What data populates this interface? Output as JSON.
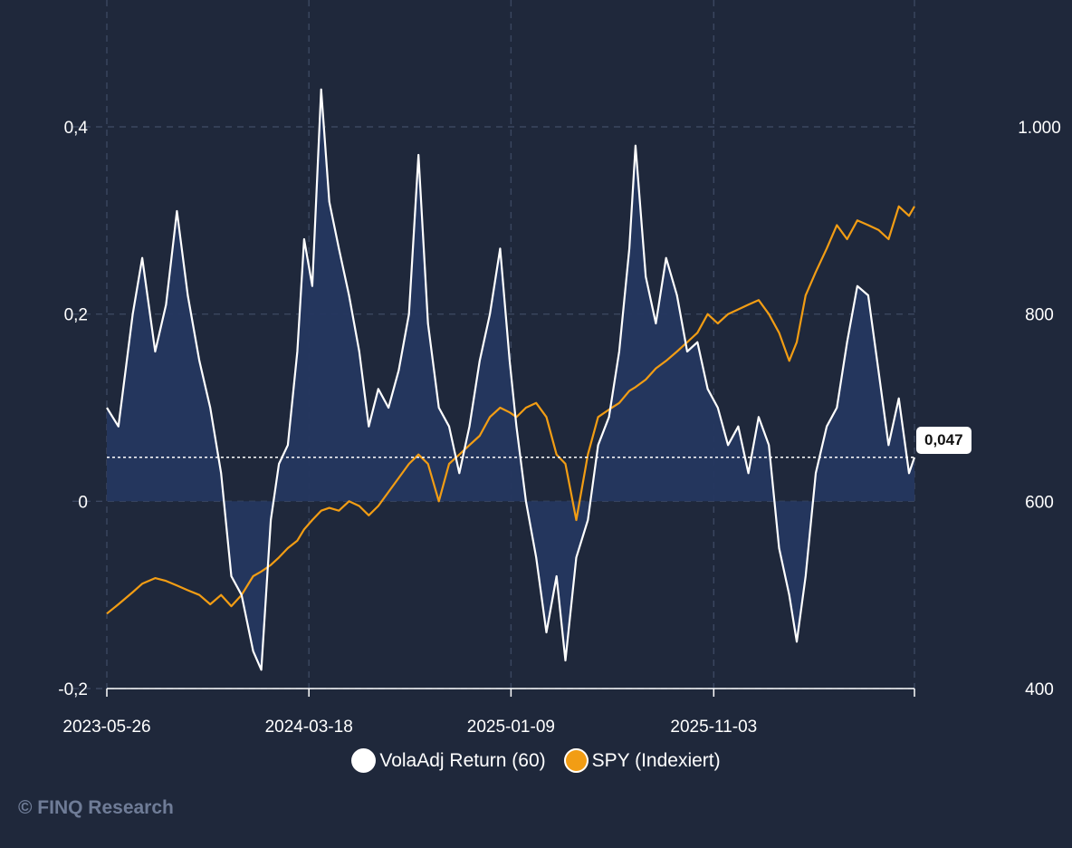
{
  "chart_data": {
    "type": "line",
    "title": "",
    "xlabel": "",
    "ylabel": "",
    "x_ticks": [
      "2023-05-26",
      "2024-03-18",
      "2025-01-09",
      "2025-11-03"
    ],
    "x_range": [
      "2023-05-26",
      "2026-08-25"
    ],
    "y_left_ticks": [
      "0,4",
      "0,2",
      "0",
      "-0,2"
    ],
    "y_left_range": [
      -0.2,
      0.4
    ],
    "y_right_ticks": [
      "1.000",
      "800",
      "600",
      "400"
    ],
    "y_right_range": [
      400,
      1000
    ],
    "grid": true,
    "legend_position": "bottom",
    "last_value_label": "0,047",
    "last_value_color": "#ffffff",
    "reference_line_value": 0.047,
    "series": [
      {
        "name": "VolaAdj Return (60)",
        "axis": "left",
        "color": "#ffffff",
        "area_fill": "#25375f",
        "points": [
          [
            "2023-05-26",
            0.1
          ],
          [
            "2023-06-12",
            0.08
          ],
          [
            "2023-07-03",
            0.2
          ],
          [
            "2023-07-17",
            0.26
          ],
          [
            "2023-08-05",
            0.16
          ],
          [
            "2023-08-21",
            0.21
          ],
          [
            "2023-09-06",
            0.31
          ],
          [
            "2023-09-22",
            0.22
          ],
          [
            "2023-10-09",
            0.15
          ],
          [
            "2023-10-25",
            0.1
          ],
          [
            "2023-11-10",
            0.03
          ],
          [
            "2023-11-25",
            -0.08
          ],
          [
            "2023-12-10",
            -0.1
          ],
          [
            "2023-12-27",
            -0.16
          ],
          [
            "2024-01-08",
            -0.18
          ],
          [
            "2024-01-22",
            -0.02
          ],
          [
            "2024-02-03",
            0.04
          ],
          [
            "2024-02-16",
            0.06
          ],
          [
            "2024-03-01",
            0.16
          ],
          [
            "2024-03-11",
            0.28
          ],
          [
            "2024-03-23",
            0.23
          ],
          [
            "2024-04-05",
            0.44
          ],
          [
            "2024-04-17",
            0.32
          ],
          [
            "2024-05-01",
            0.27
          ],
          [
            "2024-05-16",
            0.22
          ],
          [
            "2024-05-31",
            0.16
          ],
          [
            "2024-06-14",
            0.08
          ],
          [
            "2024-06-28",
            0.12
          ],
          [
            "2024-07-13",
            0.1
          ],
          [
            "2024-07-28",
            0.14
          ],
          [
            "2024-08-12",
            0.2
          ],
          [
            "2024-08-26",
            0.37
          ],
          [
            "2024-09-09",
            0.19
          ],
          [
            "2024-09-25",
            0.1
          ],
          [
            "2024-10-10",
            0.08
          ],
          [
            "2024-10-25",
            0.03
          ],
          [
            "2024-11-09",
            0.08
          ],
          [
            "2024-11-24",
            0.15
          ],
          [
            "2024-12-09",
            0.2
          ],
          [
            "2024-12-24",
            0.27
          ],
          [
            "2025-01-07",
            0.15
          ],
          [
            "2025-01-17",
            0.08
          ],
          [
            "2025-01-31",
            0.0
          ],
          [
            "2025-02-15",
            -0.06
          ],
          [
            "2025-03-02",
            -0.14
          ],
          [
            "2025-03-17",
            -0.08
          ],
          [
            "2025-03-30",
            -0.17
          ],
          [
            "2025-04-15",
            -0.06
          ],
          [
            "2025-05-02",
            -0.02
          ],
          [
            "2025-05-17",
            0.06
          ],
          [
            "2025-06-02",
            0.09
          ],
          [
            "2025-06-17",
            0.16
          ],
          [
            "2025-07-02",
            0.27
          ],
          [
            "2025-07-11",
            0.38
          ],
          [
            "2025-07-26",
            0.24
          ],
          [
            "2025-08-10",
            0.19
          ],
          [
            "2025-08-25",
            0.26
          ],
          [
            "2025-09-10",
            0.22
          ],
          [
            "2025-09-25",
            0.16
          ],
          [
            "2025-10-10",
            0.17
          ],
          [
            "2025-10-25",
            0.12
          ],
          [
            "2025-11-09",
            0.1
          ],
          [
            "2025-11-24",
            0.06
          ],
          [
            "2025-12-09",
            0.08
          ],
          [
            "2025-12-24",
            0.03
          ],
          [
            "2026-01-08",
            0.09
          ],
          [
            "2026-01-23",
            0.06
          ],
          [
            "2026-02-07",
            -0.05
          ],
          [
            "2026-02-22",
            -0.1
          ],
          [
            "2026-03-05",
            -0.15
          ],
          [
            "2026-03-18",
            -0.08
          ],
          [
            "2026-04-02",
            0.03
          ],
          [
            "2026-04-18",
            0.08
          ],
          [
            "2026-05-03",
            0.1
          ],
          [
            "2026-05-18",
            0.17
          ],
          [
            "2026-06-02",
            0.23
          ],
          [
            "2026-06-18",
            0.22
          ],
          [
            "2026-07-03",
            0.14
          ],
          [
            "2026-07-18",
            0.06
          ],
          [
            "2026-08-02",
            0.11
          ],
          [
            "2026-08-17",
            0.03
          ],
          [
            "2026-08-25",
            0.047
          ]
        ]
      },
      {
        "name": "SPY (Indexiert)",
        "axis": "right",
        "color": "#f29d14",
        "points": [
          [
            "2023-05-26",
            480
          ],
          [
            "2023-06-12",
            490
          ],
          [
            "2023-07-03",
            503
          ],
          [
            "2023-07-17",
            512
          ],
          [
            "2023-08-05",
            518
          ],
          [
            "2023-08-21",
            515
          ],
          [
            "2023-09-06",
            510
          ],
          [
            "2023-09-22",
            505
          ],
          [
            "2023-10-09",
            500
          ],
          [
            "2023-10-25",
            490
          ],
          [
            "2023-11-10",
            500
          ],
          [
            "2023-11-25",
            488
          ],
          [
            "2023-12-10",
            500
          ],
          [
            "2023-12-27",
            520
          ],
          [
            "2024-01-08",
            525
          ],
          [
            "2024-01-22",
            532
          ],
          [
            "2024-02-03",
            540
          ],
          [
            "2024-02-16",
            550
          ],
          [
            "2024-03-01",
            558
          ],
          [
            "2024-03-11",
            570
          ],
          [
            "2024-03-23",
            580
          ],
          [
            "2024-04-05",
            590
          ],
          [
            "2024-04-17",
            593
          ],
          [
            "2024-05-01",
            590
          ],
          [
            "2024-05-16",
            600
          ],
          [
            "2024-05-31",
            595
          ],
          [
            "2024-06-14",
            585
          ],
          [
            "2024-06-28",
            595
          ],
          [
            "2024-07-13",
            610
          ],
          [
            "2024-07-28",
            625
          ],
          [
            "2024-08-12",
            640
          ],
          [
            "2024-08-26",
            650
          ],
          [
            "2024-09-09",
            640
          ],
          [
            "2024-09-25",
            600
          ],
          [
            "2024-10-10",
            640
          ],
          [
            "2024-10-25",
            650
          ],
          [
            "2024-11-09",
            660
          ],
          [
            "2024-11-24",
            670
          ],
          [
            "2024-12-09",
            690
          ],
          [
            "2024-12-24",
            700
          ],
          [
            "2025-01-07",
            695
          ],
          [
            "2025-01-17",
            690
          ],
          [
            "2025-01-31",
            700
          ],
          [
            "2025-02-15",
            705
          ],
          [
            "2025-03-02",
            690
          ],
          [
            "2025-03-17",
            650
          ],
          [
            "2025-03-30",
            640
          ],
          [
            "2025-04-15",
            580
          ],
          [
            "2025-05-02",
            650
          ],
          [
            "2025-05-17",
            690
          ],
          [
            "2025-06-02",
            698
          ],
          [
            "2025-06-17",
            705
          ],
          [
            "2025-07-02",
            718
          ],
          [
            "2025-07-11",
            722
          ],
          [
            "2025-07-26",
            730
          ],
          [
            "2025-08-10",
            742
          ],
          [
            "2025-08-25",
            750
          ],
          [
            "2025-09-10",
            760
          ],
          [
            "2025-09-25",
            770
          ],
          [
            "2025-10-10",
            780
          ],
          [
            "2025-10-25",
            800
          ],
          [
            "2025-11-09",
            790
          ],
          [
            "2025-11-24",
            800
          ],
          [
            "2025-12-09",
            805
          ],
          [
            "2025-12-24",
            810
          ],
          [
            "2026-01-08",
            815
          ],
          [
            "2026-01-23",
            800
          ],
          [
            "2026-02-07",
            780
          ],
          [
            "2026-02-22",
            750
          ],
          [
            "2026-03-05",
            770
          ],
          [
            "2026-03-18",
            820
          ],
          [
            "2026-04-02",
            845
          ],
          [
            "2026-04-18",
            870
          ],
          [
            "2026-05-03",
            895
          ],
          [
            "2026-05-18",
            880
          ],
          [
            "2026-06-02",
            900
          ],
          [
            "2026-06-18",
            895
          ],
          [
            "2026-07-03",
            890
          ],
          [
            "2026-07-18",
            880
          ],
          [
            "2026-08-02",
            915
          ],
          [
            "2026-08-17",
            905
          ],
          [
            "2026-08-25",
            915
          ]
        ]
      }
    ]
  },
  "watermark": "© FINQ Research"
}
